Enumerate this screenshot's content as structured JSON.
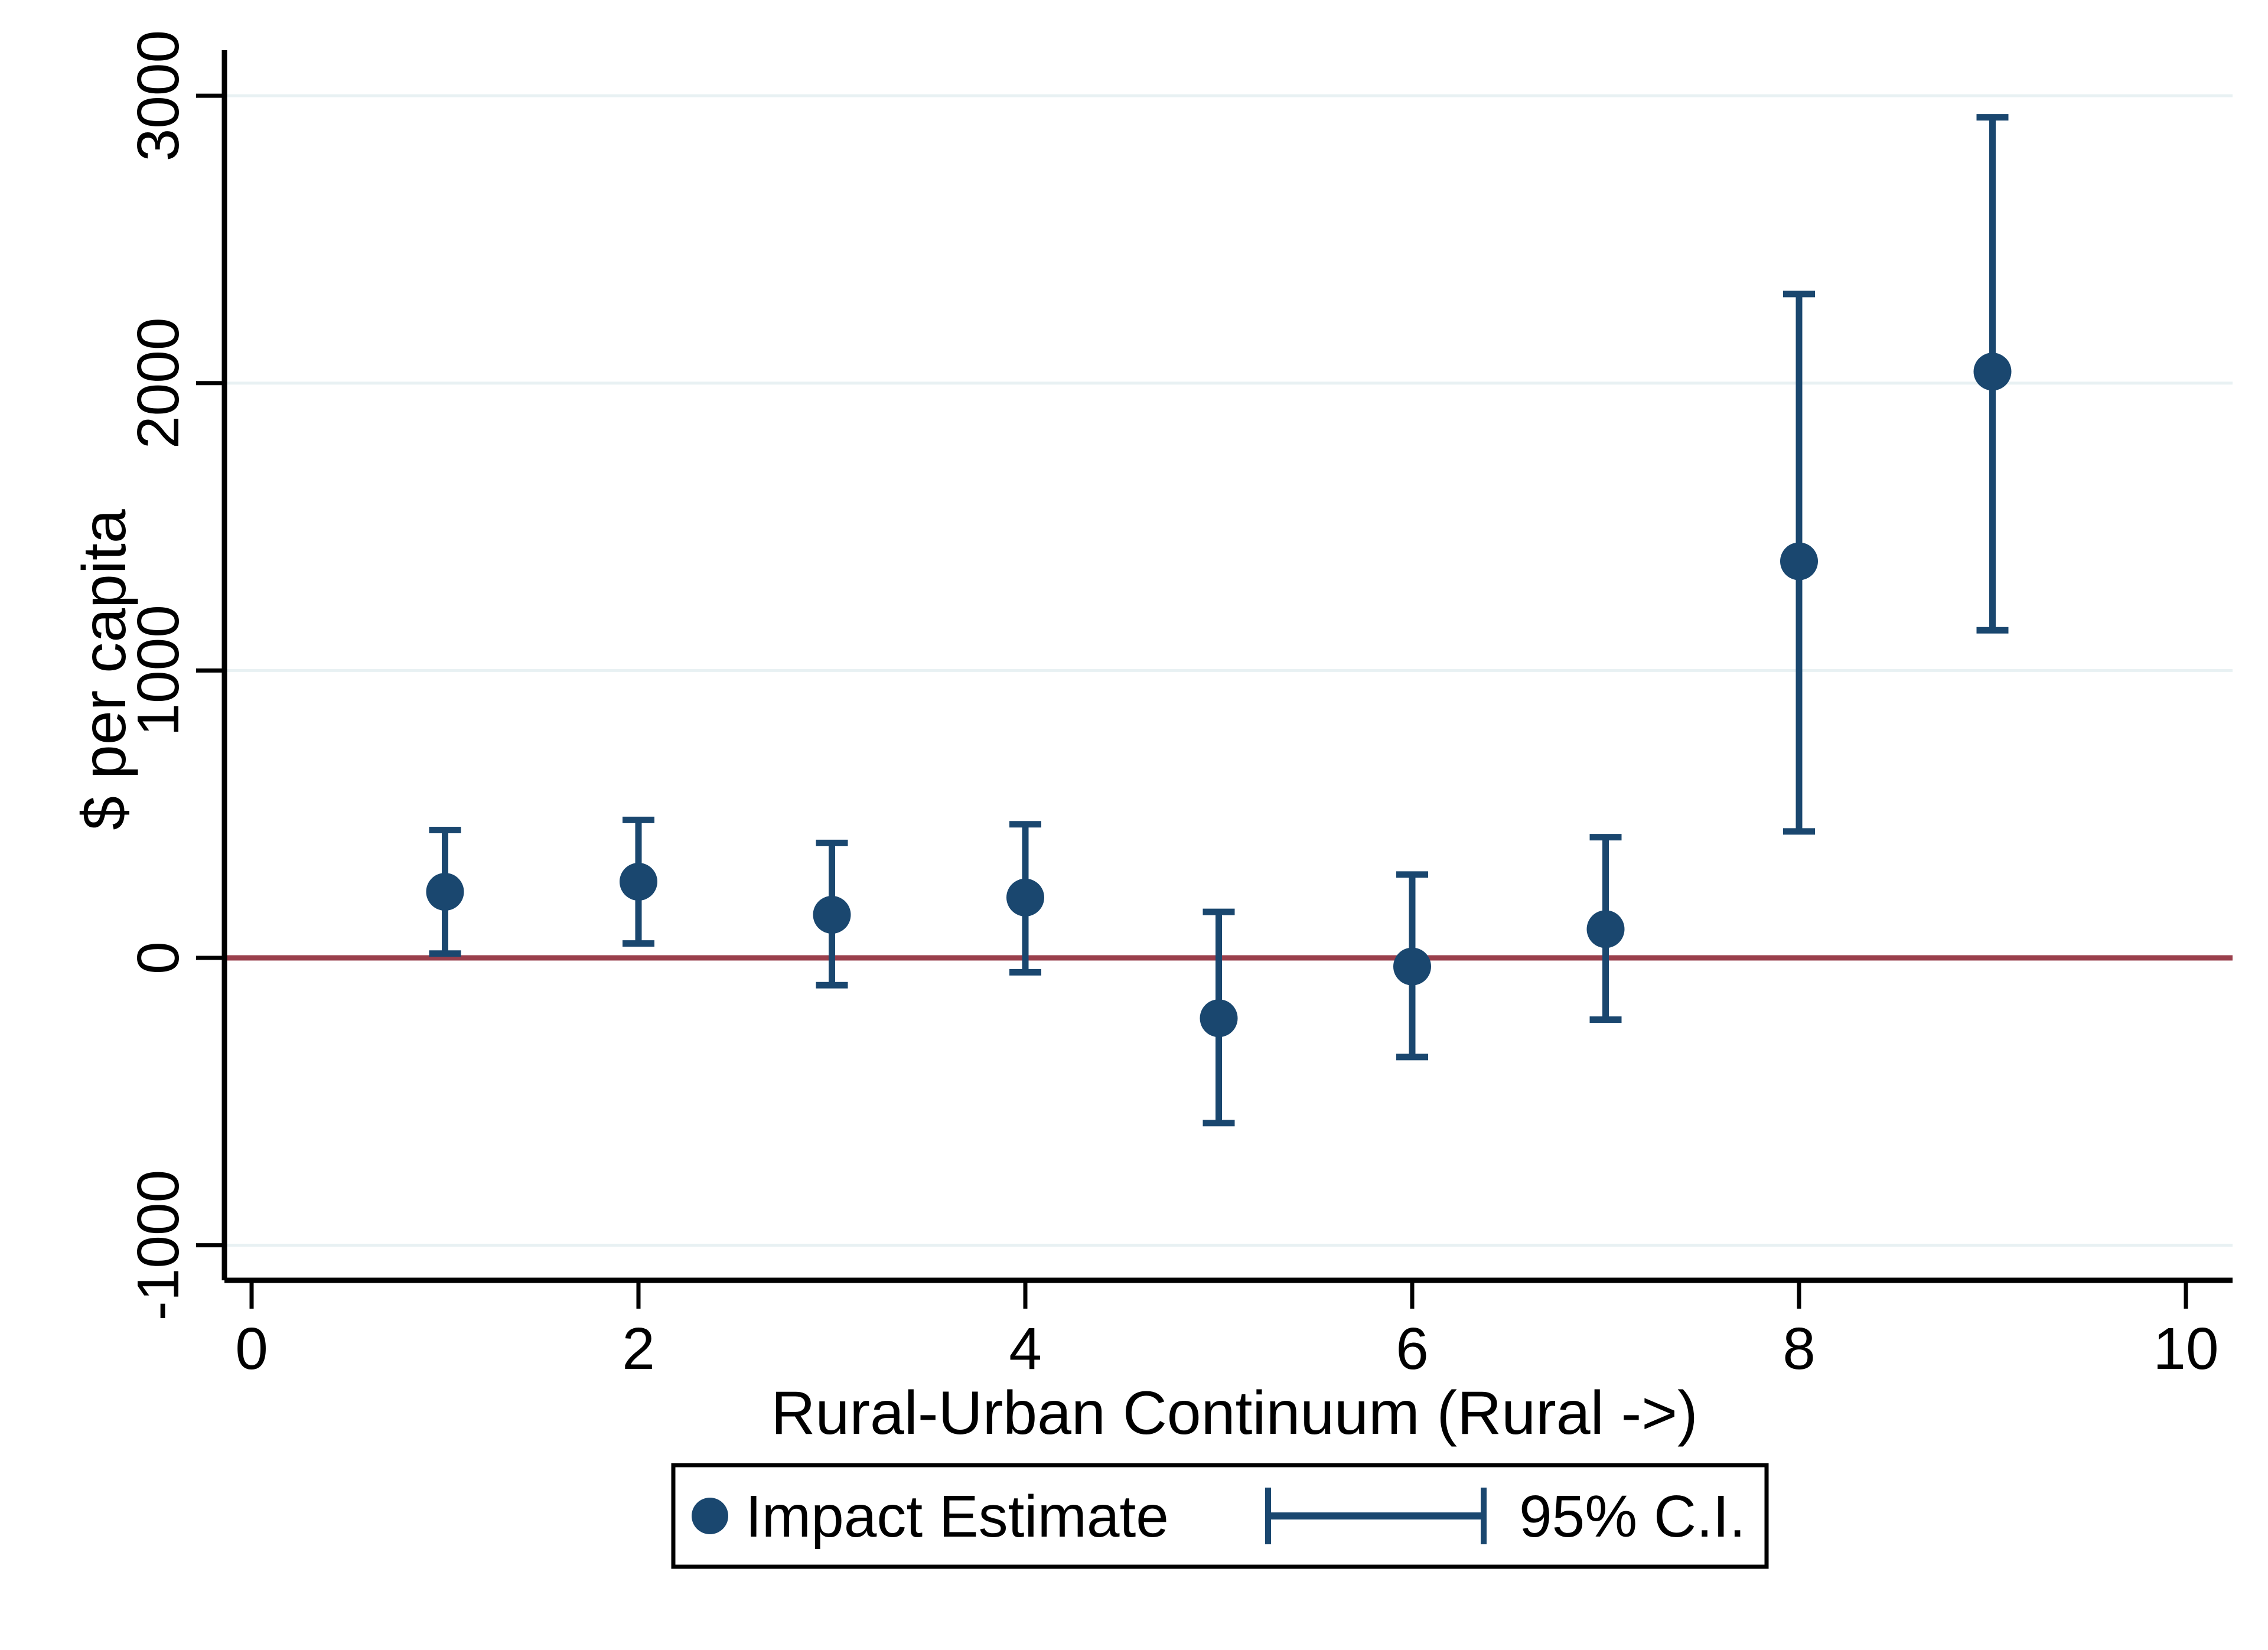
{
  "chart_data": {
    "type": "scatter",
    "title": "",
    "xlabel": "Rural-Urban Continuum (Rural ->)",
    "ylabel": "$ per capita",
    "x": [
      1,
      2,
      3,
      4,
      5,
      6,
      7,
      8,
      9
    ],
    "series": [
      {
        "name": "Impact Estimate",
        "values": [
          230,
          265,
          150,
          210,
          -210,
          -30,
          100,
          1380,
          2040
        ]
      }
    ],
    "ci_low": [
      15,
      50,
      -95,
      -50,
      -575,
      -345,
      -215,
      440,
      1140
    ],
    "ci_high": [
      445,
      480,
      400,
      465,
      160,
      290,
      420,
      2310,
      2925
    ],
    "x_ticks": [
      0,
      2,
      4,
      6,
      8,
      10
    ],
    "y_ticks": [
      -1000,
      0,
      1000,
      2000,
      3000
    ],
    "xlim": [
      -0.14,
      10.3
    ],
    "ylim": [
      -1122,
      3160
    ],
    "zero_line_at": 0,
    "grid": true,
    "legend_position": "bottom-center"
  },
  "legend": {
    "items": [
      {
        "label": "Impact Estimate",
        "marker": "filled-circle"
      },
      {
        "label": "95% C.I.",
        "marker": "error-bar"
      }
    ]
  },
  "colors": {
    "marker": "#1a476f",
    "ci_line": "#1a476f",
    "zero_line": "#9a3f4c",
    "gridline": "#e8f1f3",
    "axis": "#000000",
    "text": "#000000",
    "legend_border": "#000000",
    "background": "#ffffff"
  }
}
